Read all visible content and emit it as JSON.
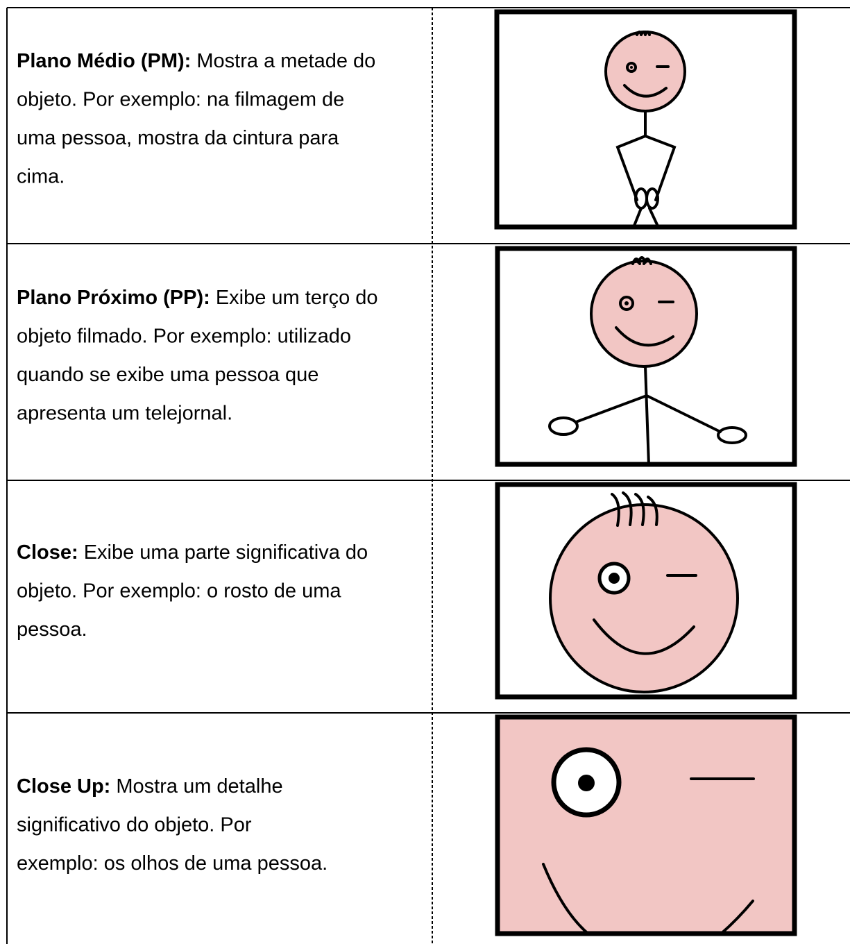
{
  "table": {
    "rows": [
      {
        "term": "Plano Médio (PM):",
        "lines": [
          " Mostra a metade do",
          "objeto. Por exemplo: na filmagem de",
          "uma pessoa, mostra da cintura para",
          "cima."
        ]
      },
      {
        "term": "Plano Próximo (PP):",
        "lines": [
          " Exibe um terço do",
          "objeto filmado. Por exemplo: utilizado",
          "quando se exibe uma pessoa que",
          "apresenta um telejornal."
        ]
      },
      {
        "term": "Close:",
        "lines": [
          " Exibe uma parte significativa do",
          "objeto. Por exemplo: o rosto de uma",
          "pessoa."
        ]
      },
      {
        "term": "Close Up:",
        "lines": [
          " Mostra um detalhe",
          "significativo do objeto. Por",
          "exemplo: os olhos de uma pessoa."
        ]
      }
    ]
  }
}
